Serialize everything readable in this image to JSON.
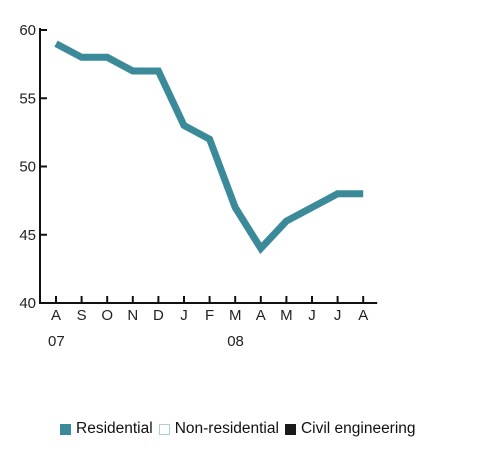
{
  "chart_data": {
    "type": "line",
    "categories": [
      "A",
      "S",
      "O",
      "N",
      "D",
      "J",
      "F",
      "M",
      "A",
      "M",
      "J",
      "J",
      "A"
    ],
    "year_labels": [
      {
        "index": 0,
        "label": "07"
      },
      {
        "index": 7,
        "label": "08"
      }
    ],
    "series": [
      {
        "name": "Residential",
        "color": "#3a8a9a",
        "values": [
          59,
          58,
          58,
          57,
          57,
          53,
          52,
          47,
          44,
          46,
          47,
          48,
          48
        ]
      }
    ],
    "ylim": [
      40,
      60
    ],
    "yticks": [
      40,
      45,
      50,
      55,
      60
    ],
    "grid": false,
    "legend": {
      "placement": "bottom",
      "items": [
        {
          "label": "Residential",
          "swatch": "filled",
          "color": "#3a8a9a"
        },
        {
          "label": "Non-residential",
          "swatch": "outline",
          "color": "#a9cfd6"
        },
        {
          "label": "Civil engineering",
          "swatch": "filled",
          "color": "#1a1a1a"
        }
      ]
    }
  }
}
